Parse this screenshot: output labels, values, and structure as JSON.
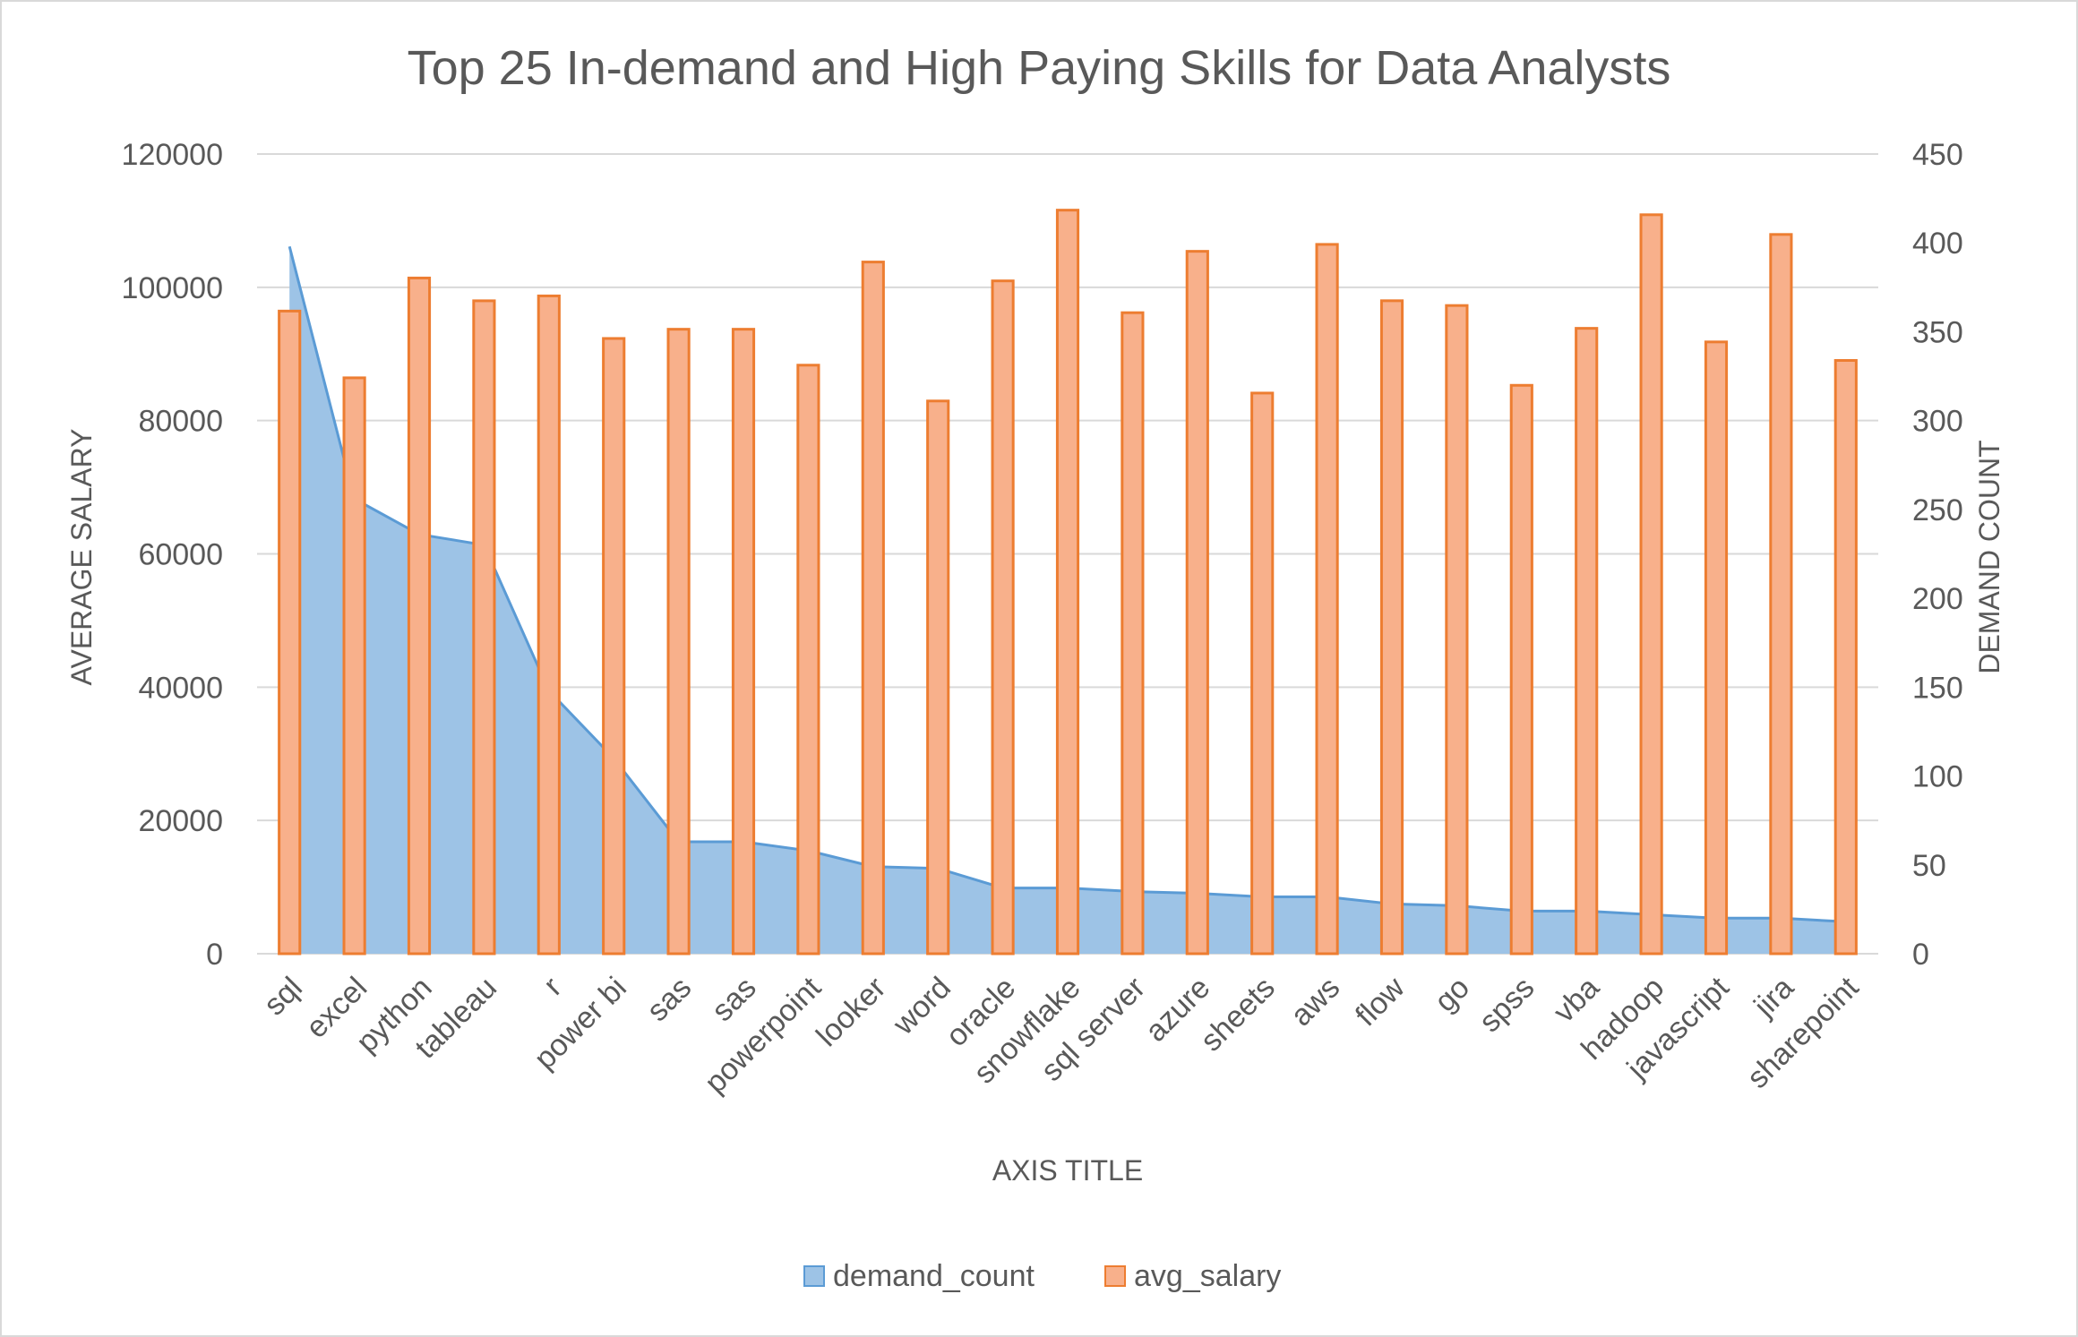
{
  "chart_data": {
    "type": "bar",
    "title": "Top 25 In-demand and High Paying Skills for Data Analysts",
    "xlabel": "AXIS TITLE",
    "ylabel": "AVERAGE SALARY",
    "y2label": "DEMAND COUNT",
    "ylim": [
      0,
      120000
    ],
    "y2lim": [
      0,
      450
    ],
    "yticks": [
      "0",
      "20000",
      "40000",
      "60000",
      "80000",
      "100000",
      "120000"
    ],
    "y2ticks": [
      "0",
      "50",
      "100",
      "150",
      "200",
      "250",
      "300",
      "350",
      "400",
      "450"
    ],
    "grid": true,
    "legend_position": "bottom",
    "categories": [
      "sql",
      "excel",
      "python",
      "tableau",
      "r",
      "power bi",
      "sas",
      "sas",
      "powerpoint",
      "looker",
      "word",
      "oracle",
      "snowflake",
      "sql server",
      "azure",
      "sheets",
      "aws",
      "flow",
      "go",
      "spss",
      "vba",
      "hadoop",
      "javascript",
      "jira",
      "sharepoint"
    ],
    "series": [
      {
        "name": "demand_count",
        "type": "area",
        "axis": "right",
        "color": "#5b9bd5",
        "fill": "#9dc3e6",
        "values": [
          398,
          256,
          236,
          230,
          148,
          110,
          63,
          63,
          58,
          49,
          48,
          37,
          37,
          35,
          34,
          32,
          32,
          28,
          27,
          24,
          24,
          22,
          20,
          20,
          18
        ]
      },
      {
        "name": "avg_salary",
        "type": "bar",
        "axis": "left",
        "color": "#ed7d31",
        "fill": "#f8b08b",
        "values": [
          96435,
          86419,
          101397,
          97978,
          98708,
          92324,
          93707,
          93707,
          88316,
          103795,
          82941,
          100964,
          111578,
          96191,
          105400,
          84130,
          106440,
          97986,
          97267,
          85293,
          93845,
          110888,
          91805,
          107931,
          89027
        ]
      }
    ]
  }
}
